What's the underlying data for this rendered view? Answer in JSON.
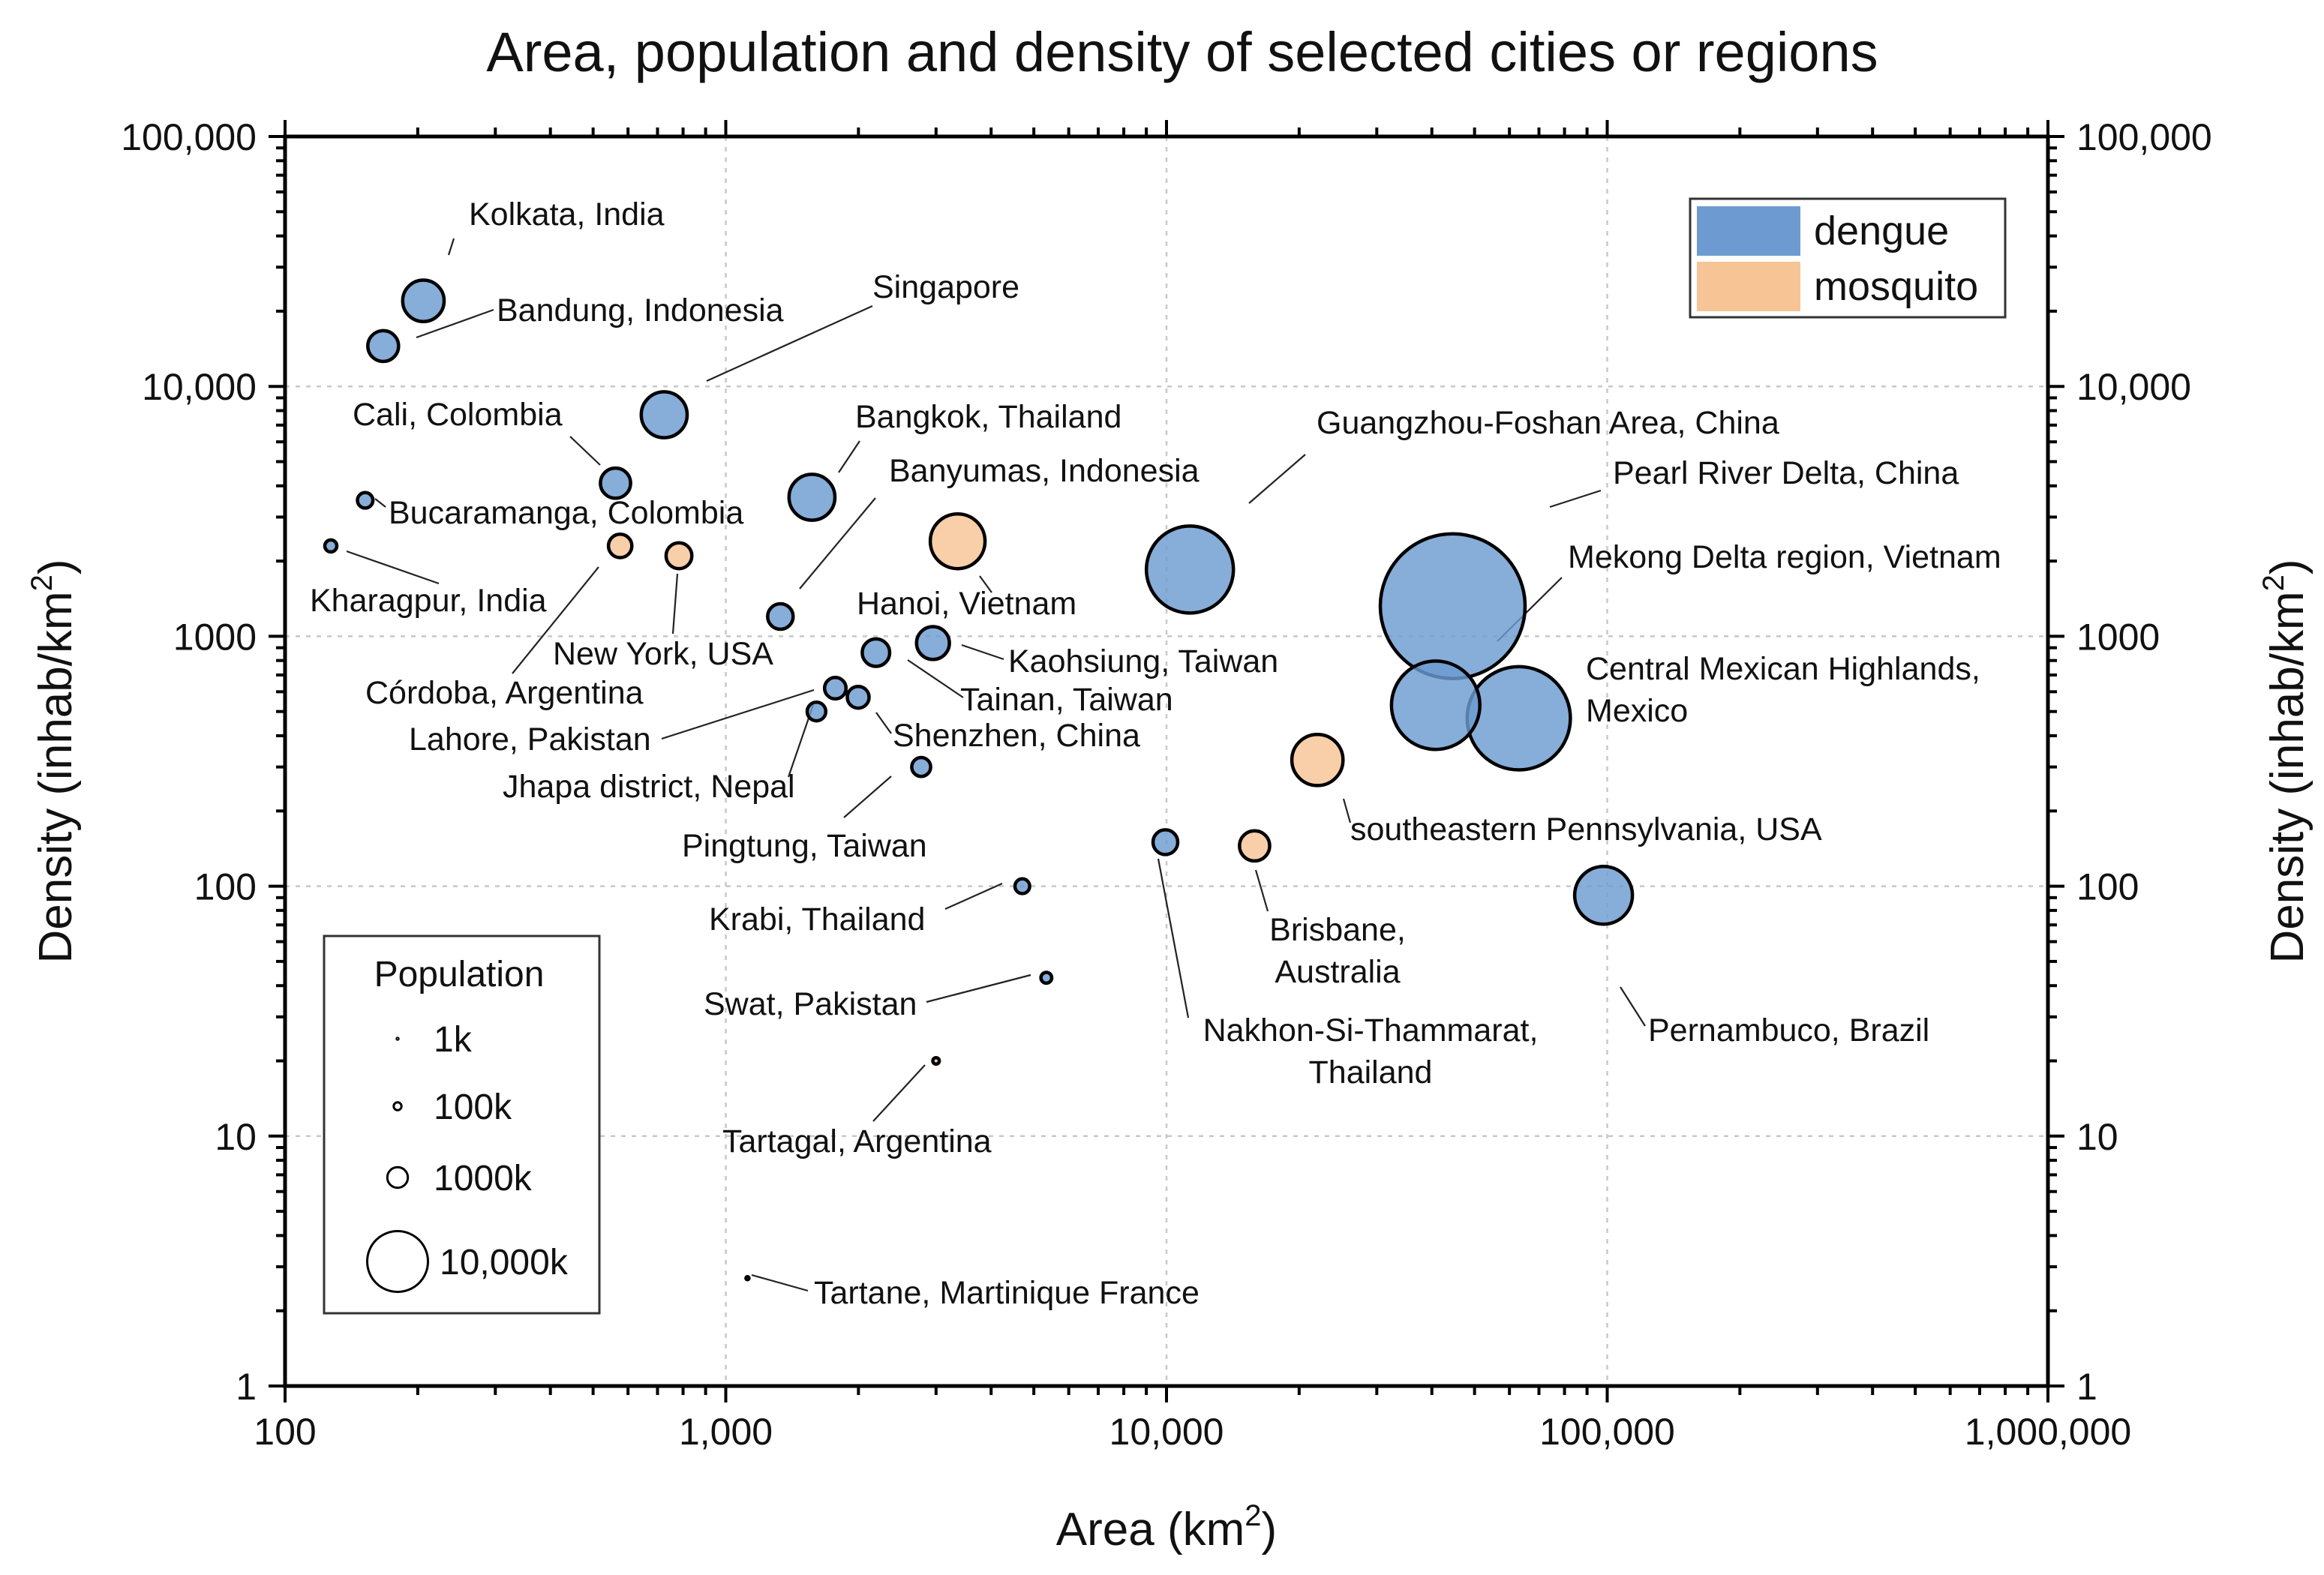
{
  "chart_data": {
    "type": "scatter",
    "subtype": "bubble",
    "title": "Area, population and density of selected cities or regions",
    "xlabel": "Area (km",
    "xlabel_sup": "2",
    "xlabel_end": ")",
    "ylabel": "Density (inhab/km",
    "ylabel_sup": "2",
    "ylabel_end": ")",
    "xscale": "log",
    "yscale": "log",
    "xlim": [
      100,
      1000000
    ],
    "ylim": [
      1,
      100000
    ],
    "grid": true,
    "x_ticks": [
      {
        "value": 100,
        "label": "100"
      },
      {
        "value": 1000,
        "label": "1,000"
      },
      {
        "value": 10000,
        "label": "10,000"
      },
      {
        "value": 100000,
        "label": "100,000"
      },
      {
        "value": 1000000,
        "label": "1,000,000"
      }
    ],
    "y_ticks": [
      {
        "value": 1,
        "label": "1"
      },
      {
        "value": 10,
        "label": "10"
      },
      {
        "value": 100,
        "label": "100"
      },
      {
        "value": 1000,
        "label": "1000"
      },
      {
        "value": 10000,
        "label": "10,000"
      },
      {
        "value": 100000,
        "label": "100,000"
      }
    ],
    "colors": {
      "dengue": "#6d9bd1",
      "mosquito": "#f7c496",
      "outline": "#000000"
    },
    "legend": {
      "placement": "top-right",
      "entries": [
        {
          "key": "dengue",
          "label": "dengue"
        },
        {
          "key": "mosquito",
          "label": "mosquito"
        }
      ]
    },
    "size_legend": {
      "placement": "bottom-left",
      "title": "Population",
      "entries": [
        {
          "label": "1k",
          "population_k": 1
        },
        {
          "label": "100k",
          "population_k": 100
        },
        {
          "label": "1000k",
          "population_k": 1000
        },
        {
          "label": "10,000k",
          "population_k": 10000
        }
      ]
    },
    "points": [
      {
        "name": "Kolkata, India",
        "lines": [
          "Kolkata, India"
        ],
        "group": "dengue",
        "area": 206,
        "density": 22000,
        "population_k": 4500
      },
      {
        "name": "Bandung, Indonesia",
        "lines": [
          "Bandung, Indonesia"
        ],
        "group": "dengue",
        "area": 167,
        "density": 14500,
        "population_k": 2400
      },
      {
        "name": "Singapore",
        "lines": [
          "Singapore"
        ],
        "group": "dengue",
        "area": 725,
        "density": 7700,
        "population_k": 5600
      },
      {
        "name": "Cali, Colombia",
        "lines": [
          "Cali, Colombia"
        ],
        "group": "dengue",
        "area": 562,
        "density": 4100,
        "population_k": 2300
      },
      {
        "name": "Bangkok, Thailand",
        "lines": [
          "Bangkok, Thailand"
        ],
        "group": "dengue",
        "area": 1569,
        "density": 3600,
        "population_k": 5600
      },
      {
        "name": "Bucaramanga, Colombia",
        "lines": [
          "Bucaramanga, Colombia"
        ],
        "group": "dengue",
        "area": 152,
        "density": 3500,
        "population_k": 530
      },
      {
        "name": "Kharagpur, India",
        "lines": [
          "Kharagpur, India"
        ],
        "group": "dengue",
        "area": 127,
        "density": 2300,
        "population_k": 290
      },
      {
        "name": "Córdoba, Argentina",
        "lines": [
          "Córdoba, Argentina"
        ],
        "group": "mosquito",
        "area": 576,
        "density": 2300,
        "population_k": 1330
      },
      {
        "name": "New York, USA",
        "lines": [
          "New York, USA"
        ],
        "group": "mosquito",
        "area": 783,
        "density": 2100,
        "population_k": 1650
      },
      {
        "name": "Banyumas, Indonesia",
        "lines": [
          "Banyumas, Indonesia"
        ],
        "group": "dengue",
        "area": 1330,
        "density": 1200,
        "population_k": 1600
      },
      {
        "name": "Hanoi, Vietnam",
        "lines": [
          "Hanoi, Vietnam"
        ],
        "group": "mosquito",
        "area": 3359,
        "density": 2400,
        "population_k": 8050
      },
      {
        "name": "Guangzhou-Foshan Area, China",
        "lines": [
          "Guangzhou-Foshan Area, China"
        ],
        "group": "dengue",
        "area": 11300,
        "density": 1850,
        "population_k": 20900
      },
      {
        "name": "Pearl River Delta, China",
        "lines": [
          "Pearl River Delta, China"
        ],
        "group": "dengue",
        "area": 44600,
        "density": 1320,
        "population_k": 58900
      },
      {
        "name": "Mekong Delta region, Vietnam",
        "lines": [
          "Mekong Delta region, Vietnam"
        ],
        "group": "dengue",
        "area": 40800,
        "density": 530,
        "population_k": 21600
      },
      {
        "name": "Central Mexican Highlands, Mexico",
        "lines": [
          "Central Mexican Highlands,",
          "Mexico"
        ],
        "group": "dengue",
        "area": 63000,
        "density": 470,
        "population_k": 29600
      },
      {
        "name": "Kaohsiung, Taiwan",
        "lines": [
          "Kaohsiung, Taiwan"
        ],
        "group": "dengue",
        "area": 2952,
        "density": 940,
        "population_k": 2770
      },
      {
        "name": "Tainan, Taiwan",
        "lines": [
          "Tainan, Taiwan"
        ],
        "group": "dengue",
        "area": 2192,
        "density": 860,
        "population_k": 1880
      },
      {
        "name": "Lahore, Pakistan",
        "lines": [
          "Lahore, Pakistan"
        ],
        "group": "dengue",
        "area": 1772,
        "density": 620,
        "population_k": 1100
      },
      {
        "name": "Shenzhen, China",
        "lines": [
          "Shenzhen, China"
        ],
        "group": "dengue",
        "area": 1997,
        "density": 570,
        "population_k": 1140
      },
      {
        "name": "Jhapa district, Nepal",
        "lines": [
          "Jhapa district, Nepal"
        ],
        "group": "dengue",
        "area": 1606,
        "density": 500,
        "population_k": 800
      },
      {
        "name": "Pingtung, Taiwan",
        "lines": [
          "Pingtung, Taiwan"
        ],
        "group": "dengue",
        "area": 2776,
        "density": 300,
        "population_k": 830
      },
      {
        "name": "southeastern Pennsylvania, USA",
        "lines": [
          "southeastern Pennsylvania, USA"
        ],
        "group": "mosquito",
        "area": 22000,
        "density": 320,
        "population_k": 7000
      },
      {
        "name": "Nakhon-Si-Thammarat, Thailand",
        "lines": [
          "Nakhon-Si-Thammarat,",
          "Thailand"
        ],
        "group": "dengue",
        "area": 9943,
        "density": 150,
        "population_k": 1500
      },
      {
        "name": "Brisbane, Australia",
        "lines": [
          "Brisbane,",
          "Australia"
        ],
        "group": "mosquito",
        "area": 15842,
        "density": 145,
        "population_k": 2300
      },
      {
        "name": "Pernambuco, Brazil",
        "lines": [
          "Pernambuco, Brazil"
        ],
        "group": "dengue",
        "area": 98100,
        "density": 92,
        "population_k": 9000
      },
      {
        "name": "Krabi, Thailand",
        "lines": [
          "Krabi, Thailand"
        ],
        "group": "dengue",
        "area": 4709,
        "density": 100,
        "population_k": 470
      },
      {
        "name": "Swat, Pakistan",
        "lines": [
          "Swat, Pakistan"
        ],
        "group": "dengue",
        "area": 5337,
        "density": 43,
        "population_k": 230
      },
      {
        "name": "Tartagal, Argentina",
        "lines": [
          "Tartagal, Argentina"
        ],
        "group": "mosquito",
        "area": 3000,
        "density": 20,
        "population_k": 60
      },
      {
        "name": "Tartane, Martinique France",
        "lines": [
          "Tartane, Martinique France"
        ],
        "group": "dengue",
        "area": 1120,
        "density": 2.7,
        "population_k": 3
      }
    ]
  }
}
